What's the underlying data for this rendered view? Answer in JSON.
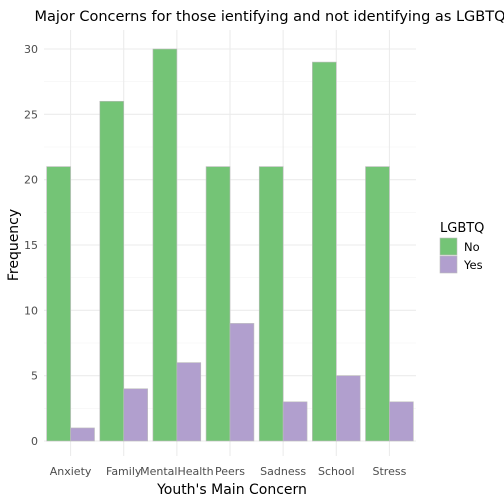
{
  "chart_data": {
    "type": "bar",
    "title": "Major Concerns for those ientifying and not identifying as LGBTQ",
    "xlabel": "Youth's Main Concern",
    "ylabel": "Frequency",
    "categories": [
      "Anxiety",
      "Family",
      "MentalHealth",
      "Peers",
      "Sadness",
      "School",
      "Stress"
    ],
    "series": [
      {
        "name": "No",
        "values": [
          21,
          26,
          30,
          21,
          21,
          29,
          21
        ],
        "color": "#74c476"
      },
      {
        "name": "Yes",
        "values": [
          1,
          4,
          6,
          9,
          3,
          5,
          3
        ],
        "color": "#b19fce"
      }
    ],
    "ylim": [
      0,
      32
    ],
    "yticks": [
      0,
      5,
      10,
      15,
      20,
      25,
      30
    ],
    "legend": {
      "title": "LGBTQ",
      "position": "right"
    },
    "grid": true
  }
}
